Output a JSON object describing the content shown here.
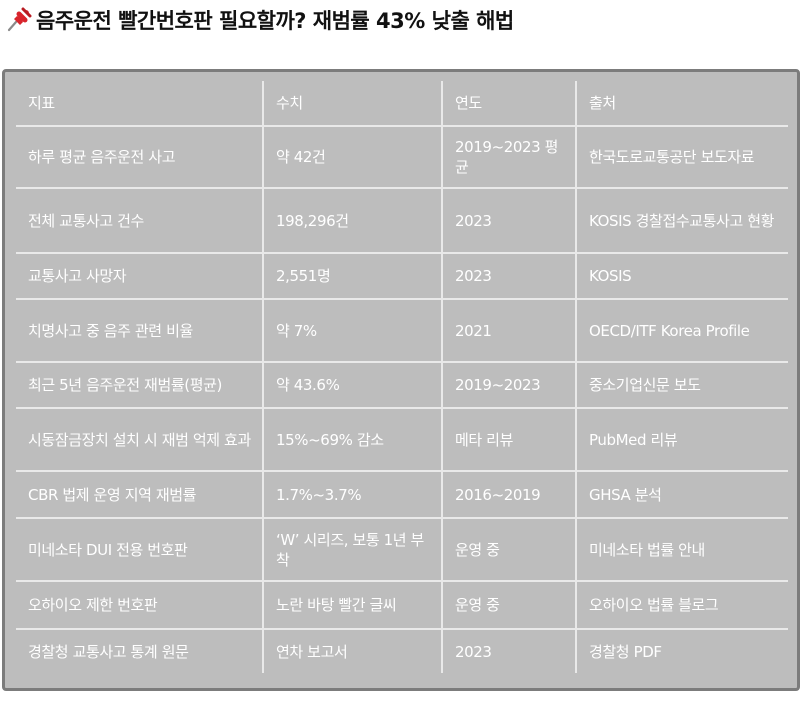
{
  "page": {
    "title": "음주운전 빨간번호판 필요할까? 재범률 43% 낮출 해법",
    "pin_icon": "pushpin-icon"
  },
  "table": {
    "headers": [
      "지표",
      "수치",
      "연도",
      "출처"
    ],
    "rows": [
      [
        "하루 평균 음주운전 사고",
        "약 42건",
        "2019~2023 평균",
        "한국도로교통공단 보도자료"
      ],
      [
        "전체 교통사고 건수",
        "198,296건",
        "2023",
        "KOSIS 경찰접수교통사고 현황"
      ],
      [
        "교통사고 사망자",
        "2,551명",
        "2023",
        "KOSIS"
      ],
      [
        "치명사고 중 음주 관련 비율",
        "약 7%",
        "2021",
        "OECD/ITF Korea Profile"
      ],
      [
        "최근 5년 음주운전 재범률(평균)",
        "약 43.6%",
        "2019~2023",
        "중소기업신문 보도"
      ],
      [
        "시동잠금장치 설치 시 재범 억제 효과",
        "15%~69% 감소",
        "메타 리뷰",
        "PubMed 리뷰"
      ],
      [
        "CBR 법제 운영 지역 재범률",
        "1.7%~3.7%",
        "2016~2019",
        "GHSA 분석"
      ],
      [
        "미네소타 DUI 전용 번호판",
        "‘W’ 시리즈, 보통 1년 부착",
        "운영 중",
        "미네소타 법률 안내"
      ],
      [
        "오하이오 제한 번호판",
        "노란 바탕 빨간 글씨",
        "운영 중",
        "오하이오 법률 블로그"
      ],
      [
        "경찰청 교통사고 통계 원문",
        "연차 보고서",
        "2023",
        "경찰청 PDF"
      ]
    ]
  }
}
